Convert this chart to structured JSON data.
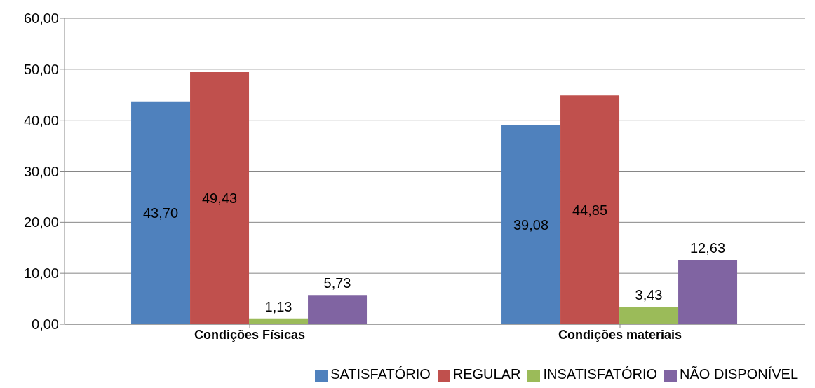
{
  "chart_data": {
    "type": "bar",
    "categories": [
      "Condições Físicas",
      "Condições materiais"
    ],
    "series": [
      {
        "name": "SATISFATÓRIO",
        "color": "#4f81bd",
        "values": [
          43.7,
          39.08
        ],
        "value_labels": [
          "43,70",
          "39,08"
        ]
      },
      {
        "name": "REGULAR",
        "color": "#c0504d",
        "values": [
          49.43,
          44.85
        ],
        "value_labels": [
          "49,43",
          "44,85"
        ]
      },
      {
        "name": "INSATISFATÓRIO",
        "color": "#9bbb59",
        "values": [
          1.13,
          3.43
        ],
        "value_labels": [
          "1,13",
          "3,43"
        ]
      },
      {
        "name": "NÃO DISPONÍVEL",
        "color": "#8064a2",
        "values": [
          5.73,
          12.63
        ],
        "value_labels": [
          "5,73",
          "12,63"
        ]
      }
    ],
    "ylim": [
      0,
      60
    ],
    "yticks": [
      {
        "value": 0,
        "label": "0,00"
      },
      {
        "value": 10,
        "label": "10,00"
      },
      {
        "value": 20,
        "label": "20,00"
      },
      {
        "value": 30,
        "label": "30,00"
      },
      {
        "value": 40,
        "label": "40,00"
      },
      {
        "value": 50,
        "label": "50,00"
      },
      {
        "value": 60,
        "label": "60,00"
      }
    ],
    "grid": "y",
    "legend": "bottom right"
  }
}
